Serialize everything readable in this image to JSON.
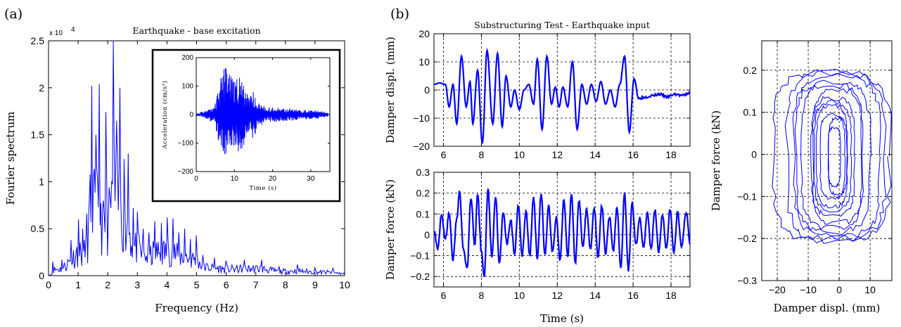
{
  "panel_labels": {
    "a": "(a)",
    "b": "(b)"
  },
  "chart_data": [
    {
      "id": "fourier",
      "type": "line",
      "title": "Earthquake - base excitation",
      "xlabel": "Frequency (Hz)",
      "ylabel": "Fourier spectrum",
      "y_multiplier": "x 10",
      "y_multiplier_exp": "4",
      "xlim": [
        0,
        10
      ],
      "ylim": [
        0,
        25000
      ],
      "xticks": [
        0,
        1,
        2,
        3,
        4,
        5,
        6,
        7,
        8,
        9,
        10
      ],
      "xtick_labels": [
        "0",
        "1",
        "2",
        "3",
        "4",
        "5",
        "6",
        "7",
        "8",
        "9",
        "10"
      ],
      "yticks": [
        0,
        5000,
        10000,
        15000,
        20000,
        25000
      ],
      "ytick_labels": [
        "0",
        "0.5",
        "1",
        "1.5",
        "2",
        "2.5"
      ],
      "grid": false,
      "color": "#0000ff",
      "peaks": [
        {
          "x": 0.15,
          "y": 1500
        },
        {
          "x": 0.45,
          "y": 1700
        },
        {
          "x": 0.75,
          "y": 3800
        },
        {
          "x": 1.0,
          "y": 6000
        },
        {
          "x": 1.15,
          "y": 5000
        },
        {
          "x": 1.3,
          "y": 6600
        },
        {
          "x": 1.45,
          "y": 20200
        },
        {
          "x": 1.6,
          "y": 15000
        },
        {
          "x": 1.72,
          "y": 20400
        },
        {
          "x": 1.85,
          "y": 8000
        },
        {
          "x": 1.95,
          "y": 17400
        },
        {
          "x": 2.05,
          "y": 9400
        },
        {
          "x": 2.18,
          "y": 25000
        },
        {
          "x": 2.3,
          "y": 16500
        },
        {
          "x": 2.42,
          "y": 20000
        },
        {
          "x": 2.55,
          "y": 12400
        },
        {
          "x": 2.7,
          "y": 13000
        },
        {
          "x": 2.85,
          "y": 7200
        },
        {
          "x": 3.0,
          "y": 6800
        },
        {
          "x": 3.2,
          "y": 5000
        },
        {
          "x": 3.4,
          "y": 4600
        },
        {
          "x": 3.6,
          "y": 5800
        },
        {
          "x": 3.8,
          "y": 5600
        },
        {
          "x": 4.0,
          "y": 6200
        },
        {
          "x": 4.2,
          "y": 6100
        },
        {
          "x": 4.4,
          "y": 4600
        },
        {
          "x": 4.6,
          "y": 5000
        },
        {
          "x": 4.8,
          "y": 3900
        },
        {
          "x": 5.0,
          "y": 4300
        },
        {
          "x": 5.2,
          "y": 2200
        },
        {
          "x": 5.6,
          "y": 1900
        },
        {
          "x": 6.0,
          "y": 1600
        },
        {
          "x": 6.6,
          "y": 1700
        },
        {
          "x": 7.2,
          "y": 1700
        },
        {
          "x": 7.8,
          "y": 1000
        },
        {
          "x": 8.4,
          "y": 1200
        },
        {
          "x": 9.0,
          "y": 900
        },
        {
          "x": 9.6,
          "y": 800
        },
        {
          "x": 10.0,
          "y": 400
        }
      ]
    },
    {
      "id": "inset",
      "type": "line",
      "xlabel": "Time (s)",
      "ylabel": "Acceleration (cm/s²)",
      "xlim": [
        0,
        35
      ],
      "ylim": [
        -200,
        200
      ],
      "xticks": [
        0,
        10,
        20,
        30
      ],
      "xtick_labels": [
        "0",
        "10",
        "20",
        "30"
      ],
      "yticks": [
        -200,
        -100,
        0,
        100,
        200
      ],
      "ytick_labels": [
        "−200",
        "−100",
        "0",
        "100",
        "200"
      ],
      "color": "#0000ff",
      "envelope": [
        {
          "t": 0,
          "a": 5
        },
        {
          "t": 3,
          "a": 15
        },
        {
          "t": 5,
          "a": 40
        },
        {
          "t": 6,
          "a": 110
        },
        {
          "t": 7,
          "a": 160
        },
        {
          "t": 8,
          "a": 175
        },
        {
          "t": 9,
          "a": 150
        },
        {
          "t": 10,
          "a": 120
        },
        {
          "t": 11,
          "a": 140
        },
        {
          "t": 12,
          "a": 120
        },
        {
          "t": 13,
          "a": 90
        },
        {
          "t": 14,
          "a": 60
        },
        {
          "t": 15,
          "a": 90
        },
        {
          "t": 16,
          "a": 50
        },
        {
          "t": 18,
          "a": 28
        },
        {
          "t": 22,
          "a": 24
        },
        {
          "t": 26,
          "a": 20
        },
        {
          "t": 30,
          "a": 16
        },
        {
          "t": 34,
          "a": 10
        }
      ]
    },
    {
      "id": "displacement",
      "type": "line",
      "title": "Substructuring Test - Earthquake input",
      "xlabel": "",
      "ylabel": "Damper displ. (mm)",
      "xlim": [
        5.5,
        19
      ],
      "ylim": [
        -20,
        20
      ],
      "xticks": [
        6,
        8,
        10,
        12,
        14,
        16,
        18
      ],
      "xtick_labels": [
        "6",
        "8",
        "10",
        "12",
        "14",
        "16",
        "18"
      ],
      "yticks": [
        -20,
        -10,
        0,
        10,
        20
      ],
      "ytick_labels": [
        "−20",
        "−10",
        "0",
        "10",
        "20"
      ],
      "grid": true,
      "color": "#0000ff",
      "points": [
        {
          "t": 5.5,
          "y": 2
        },
        {
          "t": 5.8,
          "y": 2.5
        },
        {
          "t": 6.1,
          "y": 2
        },
        {
          "t": 6.3,
          "y": -6
        },
        {
          "t": 6.5,
          "y": 2
        },
        {
          "t": 6.7,
          "y": -12
        },
        {
          "t": 6.95,
          "y": 12
        },
        {
          "t": 7.2,
          "y": -6
        },
        {
          "t": 7.4,
          "y": 3
        },
        {
          "t": 7.55,
          "y": -12
        },
        {
          "t": 7.8,
          "y": 7
        },
        {
          "t": 8.05,
          "y": -19
        },
        {
          "t": 8.3,
          "y": 14
        },
        {
          "t": 8.6,
          "y": -12
        },
        {
          "t": 8.85,
          "y": 13
        },
        {
          "t": 9.1,
          "y": -13
        },
        {
          "t": 9.3,
          "y": 5
        },
        {
          "t": 9.55,
          "y": -6
        },
        {
          "t": 9.75,
          "y": 0
        },
        {
          "t": 10.0,
          "y": -7
        },
        {
          "t": 10.25,
          "y": 0
        },
        {
          "t": 10.5,
          "y": 2
        },
        {
          "t": 10.75,
          "y": -5
        },
        {
          "t": 10.95,
          "y": 11
        },
        {
          "t": 11.2,
          "y": -14
        },
        {
          "t": 11.45,
          "y": 12
        },
        {
          "t": 11.7,
          "y": -5
        },
        {
          "t": 11.9,
          "y": 1
        },
        {
          "t": 12.1,
          "y": -6
        },
        {
          "t": 12.3,
          "y": 1
        },
        {
          "t": 12.55,
          "y": -6
        },
        {
          "t": 12.8,
          "y": 10
        },
        {
          "t": 13.05,
          "y": -14
        },
        {
          "t": 13.3,
          "y": 2
        },
        {
          "t": 13.55,
          "y": -5
        },
        {
          "t": 13.8,
          "y": 2
        },
        {
          "t": 14.05,
          "y": -4
        },
        {
          "t": 14.3,
          "y": 3
        },
        {
          "t": 14.55,
          "y": -5
        },
        {
          "t": 14.8,
          "y": 0
        },
        {
          "t": 15.05,
          "y": -6
        },
        {
          "t": 15.3,
          "y": 2
        },
        {
          "t": 15.55,
          "y": 12
        },
        {
          "t": 15.8,
          "y": -15
        },
        {
          "t": 16.05,
          "y": 4
        },
        {
          "t": 16.3,
          "y": -3
        },
        {
          "t": 16.6,
          "y": -2.5
        },
        {
          "t": 17.0,
          "y": -2
        },
        {
          "t": 17.4,
          "y": -1.5
        },
        {
          "t": 17.8,
          "y": -2.5
        },
        {
          "t": 18.2,
          "y": -1.5
        },
        {
          "t": 18.6,
          "y": -2
        },
        {
          "t": 19.0,
          "y": -1
        }
      ]
    },
    {
      "id": "force",
      "type": "line",
      "xlabel": "Time (s)",
      "ylabel": "Damper force (kN)",
      "xlim": [
        5.5,
        19
      ],
      "ylim": [
        -0.25,
        0.3
      ],
      "xticks": [
        6,
        8,
        10,
        12,
        14,
        16,
        18
      ],
      "xtick_labels": [
        "6",
        "8",
        "10",
        "12",
        "14",
        "16",
        "18"
      ],
      "yticks": [
        -0.2,
        -0.1,
        0,
        0.1,
        0.2,
        0.3
      ],
      "ytick_labels": [
        "−0.2",
        "−0.1",
        "0",
        "0.1",
        "0.2",
        "0.3"
      ],
      "grid": true,
      "color": "#0000ff",
      "points": [
        {
          "t": 5.5,
          "y": 0.02
        },
        {
          "t": 5.7,
          "y": -0.07
        },
        {
          "t": 5.9,
          "y": 0.1
        },
        {
          "t": 6.1,
          "y": -0.02
        },
        {
          "t": 6.3,
          "y": 0.1
        },
        {
          "t": 6.5,
          "y": -0.12
        },
        {
          "t": 6.7,
          "y": 0.08
        },
        {
          "t": 6.85,
          "y": 0.21
        },
        {
          "t": 7.05,
          "y": -0.07
        },
        {
          "t": 7.25,
          "y": -0.16
        },
        {
          "t": 7.45,
          "y": 0.18
        },
        {
          "t": 7.65,
          "y": -0.05
        },
        {
          "t": 7.8,
          "y": 0.2
        },
        {
          "t": 8.0,
          "y": -0.08
        },
        {
          "t": 8.15,
          "y": -0.2
        },
        {
          "t": 8.35,
          "y": 0.22
        },
        {
          "t": 8.55,
          "y": -0.1
        },
        {
          "t": 8.75,
          "y": 0.18
        },
        {
          "t": 8.95,
          "y": -0.14
        },
        {
          "t": 9.15,
          "y": 0.11
        },
        {
          "t": 9.35,
          "y": -0.04
        },
        {
          "t": 9.55,
          "y": 0.07
        },
        {
          "t": 9.75,
          "y": -0.09
        },
        {
          "t": 9.95,
          "y": 0.14
        },
        {
          "t": 10.15,
          "y": -0.1
        },
        {
          "t": 10.35,
          "y": 0.11
        },
        {
          "t": 10.55,
          "y": -0.1
        },
        {
          "t": 10.75,
          "y": 0.18
        },
        {
          "t": 10.95,
          "y": -0.11
        },
        {
          "t": 11.15,
          "y": 0.2
        },
        {
          "t": 11.35,
          "y": -0.1
        },
        {
          "t": 11.55,
          "y": 0.14
        },
        {
          "t": 11.75,
          "y": -0.08
        },
        {
          "t": 11.95,
          "y": 0.08
        },
        {
          "t": 12.15,
          "y": -0.12
        },
        {
          "t": 12.35,
          "y": 0.17
        },
        {
          "t": 12.55,
          "y": -0.1
        },
        {
          "t": 12.75,
          "y": 0.19
        },
        {
          "t": 12.95,
          "y": -0.14
        },
        {
          "t": 13.15,
          "y": 0.16
        },
        {
          "t": 13.35,
          "y": -0.06
        },
        {
          "t": 13.55,
          "y": 0.12
        },
        {
          "t": 13.75,
          "y": -0.07
        },
        {
          "t": 13.95,
          "y": 0.13
        },
        {
          "t": 14.15,
          "y": -0.11
        },
        {
          "t": 14.35,
          "y": 0.14
        },
        {
          "t": 14.55,
          "y": -0.09
        },
        {
          "t": 14.75,
          "y": 0.09
        },
        {
          "t": 14.95,
          "y": -0.08
        },
        {
          "t": 15.15,
          "y": 0.13
        },
        {
          "t": 15.35,
          "y": -0.16
        },
        {
          "t": 15.55,
          "y": 0.2
        },
        {
          "t": 15.75,
          "y": -0.17
        },
        {
          "t": 15.95,
          "y": 0.15
        },
        {
          "t": 16.15,
          "y": -0.05
        },
        {
          "t": 16.35,
          "y": 0.08
        },
        {
          "t": 16.55,
          "y": -0.06
        },
        {
          "t": 16.75,
          "y": 0.11
        },
        {
          "t": 16.95,
          "y": -0.07
        },
        {
          "t": 17.15,
          "y": 0.12
        },
        {
          "t": 17.35,
          "y": -0.08
        },
        {
          "t": 17.55,
          "y": 0.1
        },
        {
          "t": 17.75,
          "y": -0.07
        },
        {
          "t": 17.95,
          "y": 0.12
        },
        {
          "t": 18.15,
          "y": -0.08
        },
        {
          "t": 18.35,
          "y": 0.11
        },
        {
          "t": 18.55,
          "y": -0.06
        },
        {
          "t": 18.8,
          "y": 0.11
        },
        {
          "t": 19.0,
          "y": -0.04
        }
      ]
    },
    {
      "id": "hysteresis",
      "type": "line",
      "xlabel": "Damper displ. (mm)",
      "ylabel": "Damper force (kN)",
      "xlim": [
        -25,
        17
      ],
      "ylim": [
        -0.3,
        0.27
      ],
      "xticks": [
        -20,
        -10,
        0,
        10
      ],
      "xtick_labels": [
        "−20",
        "−10",
        "0",
        "10"
      ],
      "yticks": [
        -0.3,
        -0.2,
        -0.1,
        0,
        0.1,
        0.2
      ],
      "ytick_labels": [
        "−0.3",
        "−0.2",
        "−0.1",
        "0",
        "0.1",
        "0.2"
      ],
      "grid": true,
      "color": "#0000ff",
      "loops": [
        {
          "dx": 19,
          "f": 0.2
        },
        {
          "dx": 16,
          "f": 0.2
        },
        {
          "dx": 14,
          "f": 0.19
        },
        {
          "dx": 12,
          "f": 0.18
        },
        {
          "dx": 10,
          "f": 0.17
        },
        {
          "dx": 8,
          "f": 0.16
        },
        {
          "dx": 7,
          "f": 0.14
        },
        {
          "dx": 6,
          "f": 0.13
        },
        {
          "dx": 5,
          "f": 0.12
        },
        {
          "dx": 4,
          "f": 0.1
        },
        {
          "dx": 3,
          "f": 0.09
        },
        {
          "dx": 2,
          "f": 0.07
        }
      ]
    }
  ]
}
